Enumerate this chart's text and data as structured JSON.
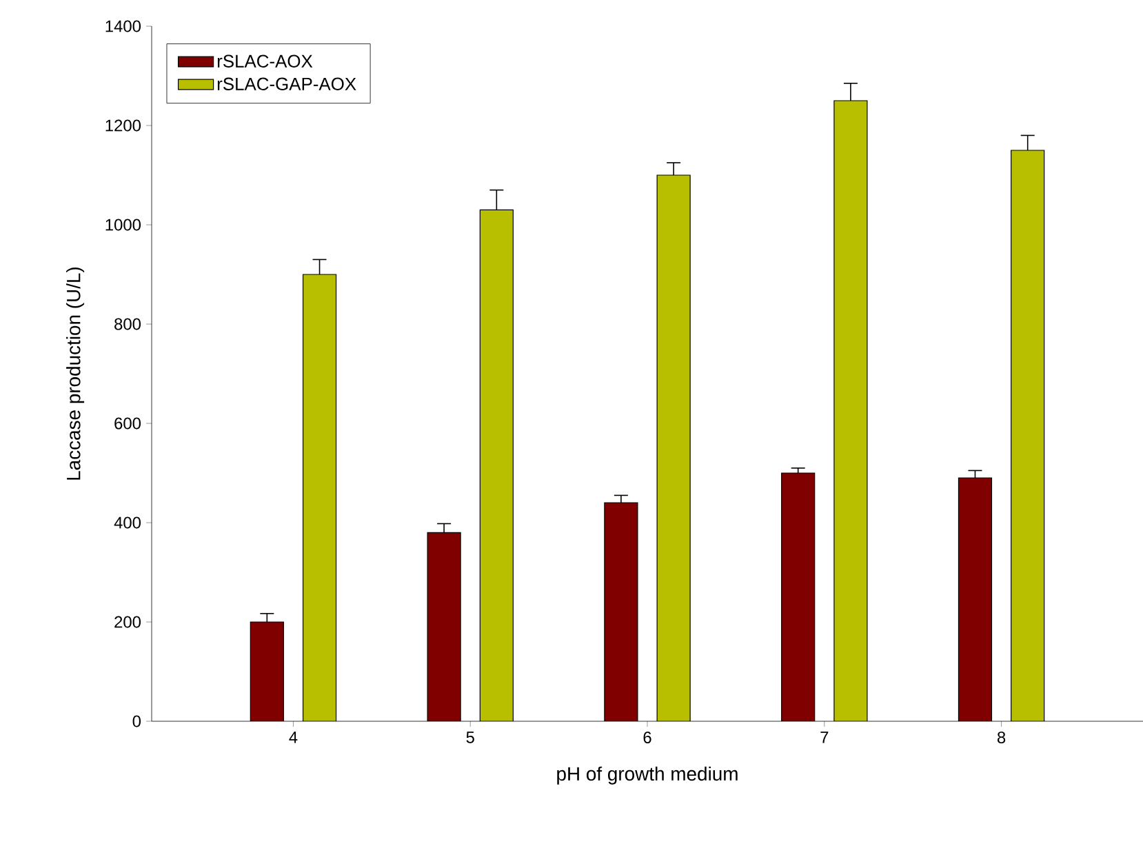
{
  "chart_data": {
    "type": "bar",
    "xlabel": "pH of growth medium",
    "ylabel": "Laccase production (U/L)",
    "categories": [
      "4",
      "5",
      "6",
      "7",
      "8"
    ],
    "series": [
      {
        "name": "rSLAC-AOX",
        "color": "#800000",
        "values": [
          200,
          380,
          440,
          500,
          490
        ],
        "errors": [
          17,
          18,
          15,
          10,
          15
        ]
      },
      {
        "name": "rSLAC-GAP-AOX",
        "color": "#b8bf00",
        "values": [
          900,
          1030,
          1100,
          1250,
          1150
        ],
        "errors": [
          30,
          40,
          25,
          35,
          30
        ]
      }
    ],
    "ylim": [
      0,
      1400
    ],
    "yticks": [
      0,
      200,
      400,
      600,
      800,
      1000,
      1200,
      1400
    ],
    "grid": false,
    "legend": "top left"
  }
}
